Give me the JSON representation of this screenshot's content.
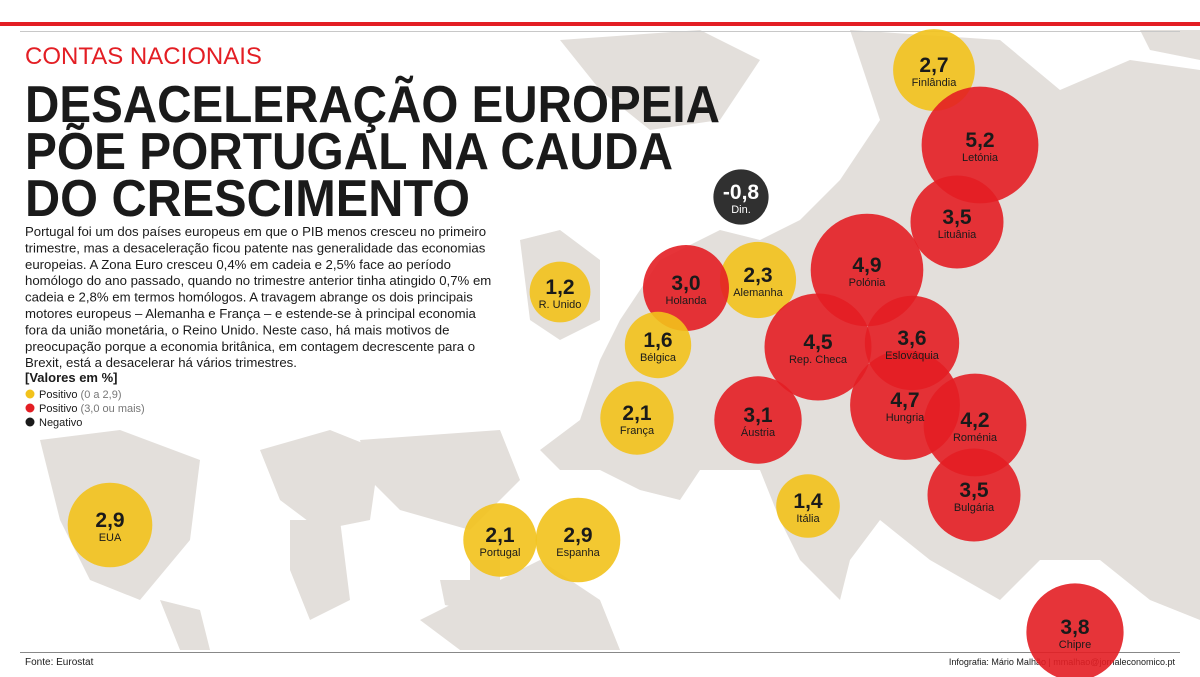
{
  "kicker": "CONTAS NACIONAIS",
  "title_lines": [
    "DESACELERAÇÃO EUROPEIA",
    "PÕE PORTUGAL NA CAUDA",
    "DO CRESCIMENTO"
  ],
  "body_lines": [
    "Portugal foi um dos países europeus em que o PIB menos cresceu no primeiro",
    "trimestre, mas a desaceleração ficou patente nas generalidade das economias",
    "europeias. A Zona Euro cresceu 0,4% em cadeia e 2,5% face ao período",
    "homólogo do ano passado, quando no trimestre anterior tinha atingido 0,7% em",
    "cadeia e 2,8% em termos homólogos. A travagem abrange os dois principais",
    "motores europeus – Alemanha e França – e estende-se à principal economia",
    "fora da união monetária, o Reino Unido. Neste caso, há mais motivos de",
    "preocupação porque a economia britânica, em contagem decrescente para o",
    "Brexit, está a desacelerar há vários trimestres."
  ],
  "unit_note": "[Valores em %]",
  "legend": [
    {
      "name": "Positivo",
      "range": "(0 a 2,9)",
      "color": "#f2c21b"
    },
    {
      "name": "Positivo",
      "range": "(3,0 ou mais)",
      "color": "#e31e24"
    },
    {
      "name": "Negativo",
      "color": "#1a1a1a"
    }
  ],
  "source": "Fonte: Eurostat",
  "credit": "Infografia: Mário Malhão  |  mmalhao@jornaleconomico.pt",
  "chart_data": {
    "type": "bubble",
    "categories": [
      "Finlândia",
      "Letónia",
      "Lituânia",
      "Din.",
      "Polónia",
      "Alemanha",
      "Holanda",
      "R. Unido",
      "Bélgica",
      "Rep. Checa",
      "Eslováquia",
      "França",
      "Áustria",
      "Hungria",
      "Roménia",
      "Bulgária",
      "Itália",
      "Portugal",
      "Espanha",
      "EUA",
      "Chipre"
    ],
    "values": [
      2.7,
      5.2,
      3.5,
      -0.8,
      4.9,
      2.3,
      3.0,
      1.2,
      1.6,
      4.5,
      3.6,
      2.1,
      3.1,
      4.7,
      4.2,
      3.5,
      1.4,
      2.1,
      2.9,
      2.9,
      3.8
    ],
    "value_labels": [
      "2,7",
      "5,2",
      "3,5",
      "-0,8",
      "4,9",
      "2,3",
      "3,0",
      "1,2",
      "1,6",
      "4,5",
      "3,6",
      "2,1",
      "3,1",
      "4,7",
      "4,2",
      "3,5",
      "1,4",
      "2,1",
      "2,9",
      "2,9",
      "3,8"
    ],
    "colors": [
      "#f2c21b",
      "#e31e24",
      "#e31e24",
      "#1a1a1a",
      "#e31e24",
      "#f2c21b",
      "#e31e24",
      "#f2c21b",
      "#f2c21b",
      "#e31e24",
      "#e31e24",
      "#f2c21b",
      "#e31e24",
      "#e31e24",
      "#e31e24",
      "#e31e24",
      "#f2c21b",
      "#f2c21b",
      "#f2c21b",
      "#f2c21b",
      "#e31e24"
    ]
  }
}
